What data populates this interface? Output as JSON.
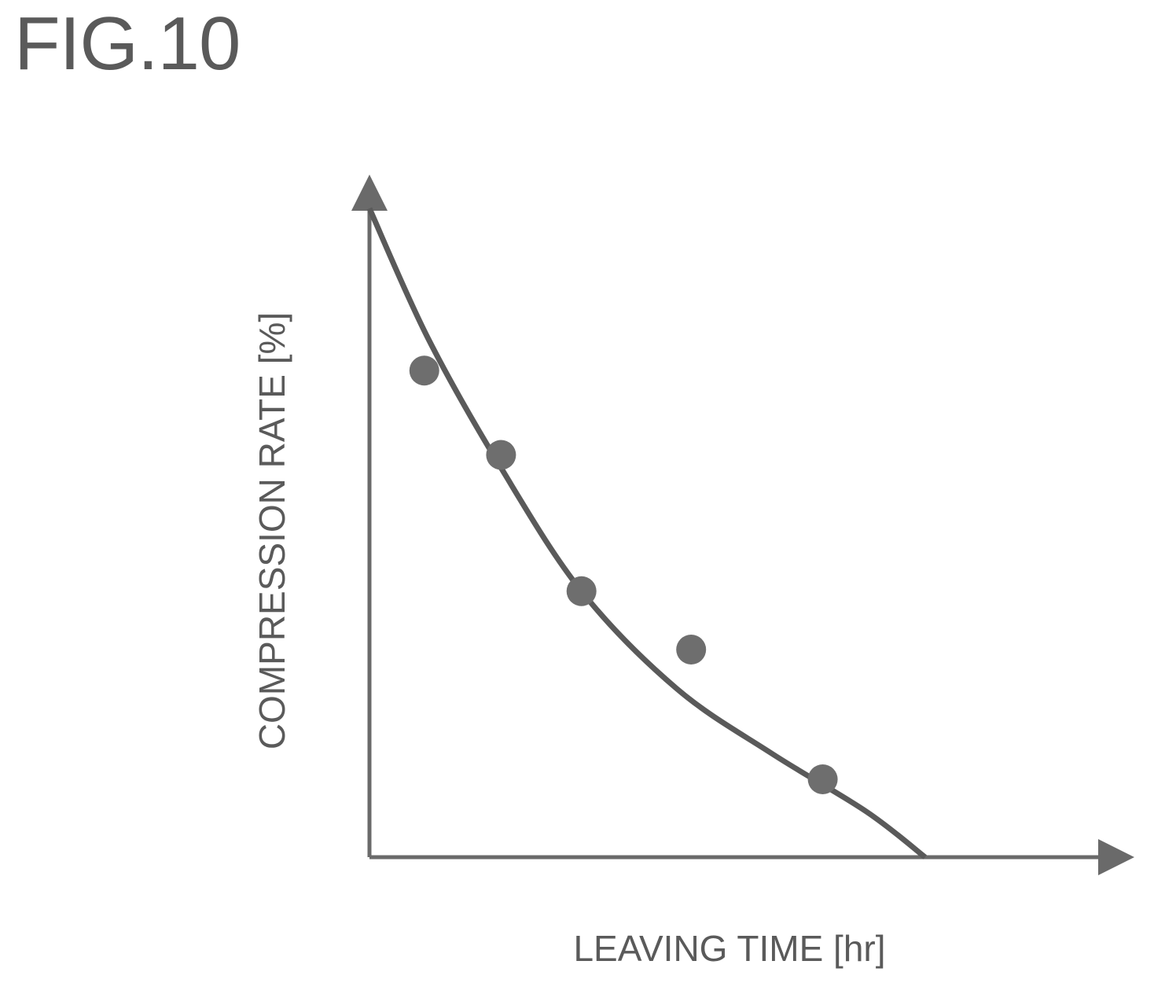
{
  "figure": {
    "label": "FIG.10"
  },
  "chart_data": {
    "type": "scatter",
    "xlabel": "LEAVING TIME [hr]",
    "ylabel": "COMPRESSION RATE [%]",
    "xlim": [
      0,
      10
    ],
    "ylim": [
      0,
      10
    ],
    "grid": false,
    "axis_ticks": "none",
    "series": [
      {
        "kind": "points",
        "points": [
          [
            0.75,
            7.5
          ],
          [
            1.8,
            6.2
          ],
          [
            2.9,
            4.1
          ],
          [
            4.4,
            3.2
          ],
          [
            6.2,
            1.2
          ]
        ]
      },
      {
        "kind": "fitted-curve",
        "points": [
          [
            0.0,
            10.0
          ],
          [
            0.8,
            8.0
          ],
          [
            1.8,
            6.0
          ],
          [
            2.9,
            4.1
          ],
          [
            4.2,
            2.6
          ],
          [
            5.5,
            1.6
          ],
          [
            6.8,
            0.7
          ],
          [
            7.6,
            0.0
          ]
        ]
      }
    ],
    "colors": {
      "ink": "#5a5a5a",
      "points": "#6e6e6e"
    }
  }
}
